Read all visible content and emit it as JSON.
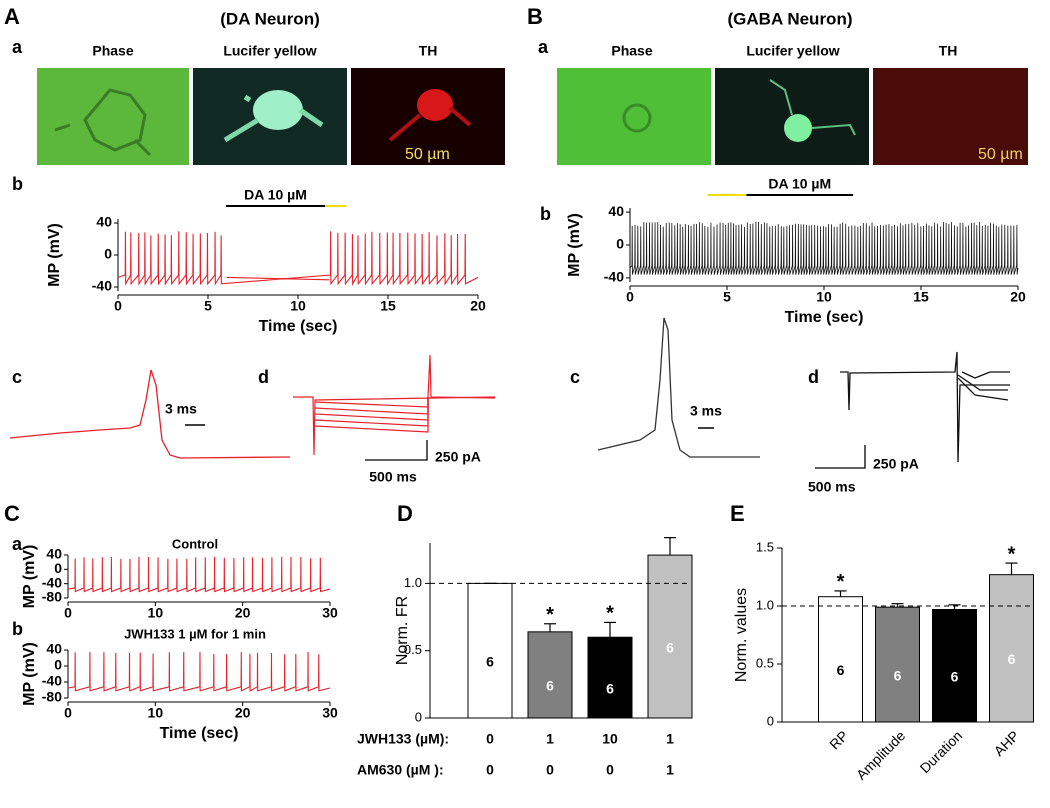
{
  "panels": {
    "A": {
      "letter": "A",
      "title": "(DA Neuron)",
      "a": "a",
      "images": [
        "Phase",
        "Lucifer yellow",
        "TH"
      ],
      "scale": "50 µm",
      "b": "b",
      "c": "c",
      "c_scale": "3 ms",
      "d": "d",
      "d_time": "500 ms",
      "d_current": "250 pA"
    },
    "B": {
      "letter": "B",
      "title": "(GABA Neuron)",
      "a": "a",
      "images": [
        "Phase",
        "Lucifer yellow",
        "TH"
      ],
      "scale": "50 µm",
      "b": "b",
      "c": "c",
      "c_scale": "3 ms",
      "d": "d",
      "d_time": "500 ms",
      "d_current": "250 pA"
    },
    "C": {
      "letter": "C",
      "a": "a",
      "b": "b"
    },
    "D": {
      "letter": "D"
    },
    "E": {
      "letter": "E"
    }
  },
  "chart_data": [
    {
      "type": "trace",
      "ylabel": "MP (mV)",
      "xlabel": "Time (sec)",
      "color": "#e8202a",
      "xlim": [
        0,
        20
      ],
      "xticks": [
        0,
        5,
        10,
        15,
        20
      ],
      "ylim": [
        -45,
        45
      ],
      "yticks": [
        40,
        0,
        -40
      ],
      "bars": [
        {
          "label": "DA 10 µM",
          "start": 6,
          "end": 11.5,
          "color": "#000000"
        },
        {
          "start": 11.5,
          "end": 12.7,
          "color": "#f0e000"
        }
      ]
    },
    {
      "type": "trace",
      "ylabel": "MP (mV)",
      "xlabel": "Time (sec)",
      "color": "#111111",
      "xlim": [
        0,
        20
      ],
      "xticks": [
        0,
        5,
        10,
        15,
        20
      ],
      "ylim": [
        -45,
        45
      ],
      "yticks": [
        40,
        0,
        -40
      ],
      "bars": [
        {
          "label": "DA 10 µM",
          "start": 6,
          "end": 11.5,
          "color": "#000000"
        },
        {
          "start": 4,
          "end": 6,
          "color": "#f0e000"
        }
      ]
    },
    {
      "type": "trace",
      "title": "Control",
      "ylabel": "MP (mV)",
      "color": "#e8202a",
      "xlim": [
        0,
        30
      ],
      "xticks": [
        0,
        10,
        20,
        30
      ],
      "ylim": [
        -80,
        40
      ],
      "yticks": [
        40,
        0,
        -40,
        -80
      ]
    },
    {
      "type": "trace",
      "title": "JWH133 1 µM for 1 min",
      "ylabel": "MP (mV)",
      "xlabel": "Time (sec)",
      "color": "#e8202a",
      "xlim": [
        0,
        30
      ],
      "xticks": [
        0,
        10,
        20,
        30
      ],
      "ylim": [
        -80,
        40
      ],
      "yticks": [
        40,
        0,
        -40,
        -80
      ]
    },
    {
      "type": "bar",
      "ylabel": "Norm. FR",
      "ylim": [
        0,
        1.3
      ],
      "yticks": [
        0,
        0.5,
        {
          "value": 1,
          "label": "1.0"
        }
      ],
      "reference": 1,
      "categories": [
        null,
        null,
        null,
        null
      ],
      "values": [
        1.0,
        0.64,
        0.6,
        1.21
      ],
      "errors": [
        0,
        0.06,
        0.11,
        0.13
      ],
      "colors": [
        "#ffffff",
        "#808080",
        "#000000",
        "#c0c0c0"
      ],
      "counts": [
        6,
        6,
        6,
        6
      ],
      "stars": [
        {
          "index": 1,
          "label": "*"
        },
        {
          "index": 2,
          "label": "*"
        }
      ],
      "rows": [
        {
          "label": "JWH133 (µM):",
          "cells": [
            "0",
            "1",
            "10",
            "1"
          ]
        },
        {
          "label": "AM630 (µM ):",
          "cells": [
            "0",
            "0",
            "0",
            "1"
          ]
        }
      ]
    },
    {
      "type": "bar",
      "ylabel": "Norm. values",
      "ylim": [
        0,
        1.5
      ],
      "yticks": [
        0,
        0.5,
        {
          "value": 1,
          "label": "1.0"
        },
        1.5
      ],
      "reference": 1,
      "categories": [
        "RP",
        "Amplitude",
        "Duration",
        "AHP"
      ],
      "values": [
        1.08,
        0.99,
        0.97,
        1.27
      ],
      "errors": [
        0.05,
        0.03,
        0.04,
        0.1
      ],
      "colors": [
        "#ffffff",
        "#808080",
        "#000000",
        "#c0c0c0"
      ],
      "counts": [
        6,
        6,
        6,
        6
      ],
      "stars": [
        {
          "index": 0,
          "label": "*"
        },
        {
          "index": 3,
          "label": "*"
        }
      ]
    }
  ]
}
